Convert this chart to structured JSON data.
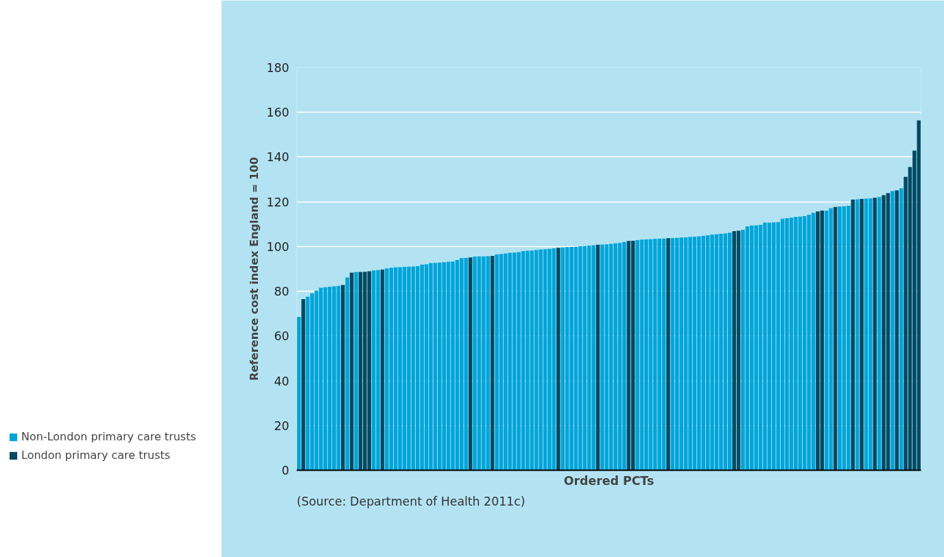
{
  "chart_data": {
    "type": "bar",
    "xlabel": "Ordered PCTs",
    "ylabel": "Reference cost index England = 100",
    "categories": [
      null,
      null,
      null,
      null,
      null,
      null,
      null,
      null,
      null,
      null,
      null,
      null,
      null,
      null,
      null,
      null,
      null,
      null,
      null,
      null,
      null,
      null,
      null,
      null,
      null,
      null,
      null,
      null,
      null,
      null,
      null,
      null,
      null,
      null,
      null,
      null,
      null,
      null,
      null,
      null,
      null,
      null,
      null,
      null,
      null,
      null,
      null,
      null,
      null,
      null,
      null,
      null,
      null,
      null,
      null,
      null,
      null,
      null,
      null,
      null,
      null,
      null,
      null,
      null,
      null,
      null,
      null,
      null,
      null,
      null,
      null,
      null,
      null,
      null,
      null,
      null,
      null,
      null,
      null,
      null,
      null,
      null,
      null,
      null,
      null,
      null,
      null,
      null,
      null,
      null,
      null,
      null,
      null,
      null,
      null,
      null,
      null,
      null,
      null,
      null,
      null,
      null,
      null,
      null,
      null,
      null,
      null,
      null,
      null,
      null,
      null,
      null,
      null,
      null,
      null,
      null,
      null,
      null,
      null,
      null,
      null,
      null,
      null,
      null,
      null,
      null,
      null,
      null,
      null,
      null,
      null,
      null,
      null,
      null,
      null,
      null,
      null,
      null,
      null,
      null,
      null,
      null
    ],
    "series": [
      {
        "name": "Non-London primary care trusts",
        "color": "#00a5d9",
        "values": [
          68.5,
          null,
          77.6,
          79.1,
          80.3,
          81.6,
          81.8,
          82.0,
          82.2,
          82.4,
          null,
          86.2,
          null,
          88.6,
          null,
          null,
          null,
          89.3,
          89.5,
          null,
          90.2,
          90.5,
          90.7,
          90.8,
          90.9,
          91.0,
          91.1,
          91.2,
          91.9,
          92.1,
          92.6,
          92.7,
          92.8,
          93.0,
          93.2,
          93.3,
          94.0,
          94.8,
          94.9,
          null,
          95.5,
          95.6,
          95.6,
          95.7,
          null,
          96.5,
          96.7,
          96.9,
          97.2,
          97.3,
          97.5,
          98.0,
          98.1,
          98.2,
          98.4,
          98.7,
          98.8,
          99.0,
          99.2,
          null,
          99.6,
          99.7,
          99.8,
          99.9,
          100.1,
          100.2,
          100.4,
          100.6,
          null,
          100.9,
          101.0,
          101.2,
          101.4,
          101.6,
          102.0,
          null,
          null,
          102.9,
          103.1,
          103.2,
          103.3,
          103.4,
          103.5,
          103.6,
          null,
          103.8,
          103.9,
          104.0,
          104.1,
          104.3,
          104.4,
          104.6,
          104.8,
          105.0,
          105.3,
          105.5,
          105.7,
          105.9,
          106.2,
          null,
          null,
          107.5,
          109.0,
          109.4,
          109.5,
          109.7,
          110.7,
          110.7,
          110.8,
          110.9,
          112.5,
          112.7,
          112.9,
          113.2,
          113.4,
          113.6,
          114.2,
          115.1,
          null,
          null,
          116.1,
          117.1,
          null,
          117.9,
          118.0,
          118.2,
          null,
          121.1,
          null,
          121.4,
          121.5,
          null,
          122.1,
          null,
          null,
          124.8,
          null,
          126.0,
          null,
          null,
          null,
          null
        ]
      },
      {
        "name": "London primary care trusts",
        "color": "#004a63",
        "values": [
          null,
          76.5,
          null,
          null,
          null,
          null,
          null,
          null,
          null,
          null,
          82.8,
          null,
          88.3,
          null,
          88.6,
          88.7,
          88.9,
          null,
          null,
          89.7,
          null,
          null,
          null,
          null,
          null,
          null,
          null,
          null,
          null,
          null,
          null,
          null,
          null,
          null,
          null,
          null,
          null,
          null,
          null,
          95.1,
          null,
          null,
          null,
          null,
          95.8,
          null,
          null,
          null,
          null,
          null,
          null,
          null,
          null,
          null,
          null,
          null,
          null,
          null,
          null,
          99.4,
          null,
          null,
          null,
          null,
          null,
          null,
          null,
          null,
          100.8,
          null,
          null,
          null,
          null,
          null,
          null,
          102.5,
          102.6,
          null,
          null,
          null,
          null,
          null,
          null,
          null,
          103.7,
          null,
          null,
          null,
          null,
          null,
          null,
          null,
          null,
          null,
          null,
          null,
          null,
          null,
          null,
          106.9,
          107.1,
          null,
          null,
          null,
          null,
          null,
          null,
          null,
          null,
          null,
          null,
          null,
          null,
          null,
          null,
          null,
          null,
          null,
          115.7,
          116.1,
          null,
          null,
          117.7,
          null,
          null,
          null,
          121.0,
          null,
          121.3,
          null,
          null,
          121.8,
          null,
          123.0,
          123.9,
          null,
          125.1,
          null,
          131.2,
          135.5,
          142.9,
          156.4
        ]
      }
    ],
    "ylim": [
      0,
      180
    ],
    "yticks": [
      0,
      20,
      40,
      60,
      80,
      100,
      120,
      140,
      160,
      180
    ],
    "grid": "y",
    "legend": "bottom left",
    "annotations": [
      "(Source: Department of Health 2011c)"
    ]
  }
}
